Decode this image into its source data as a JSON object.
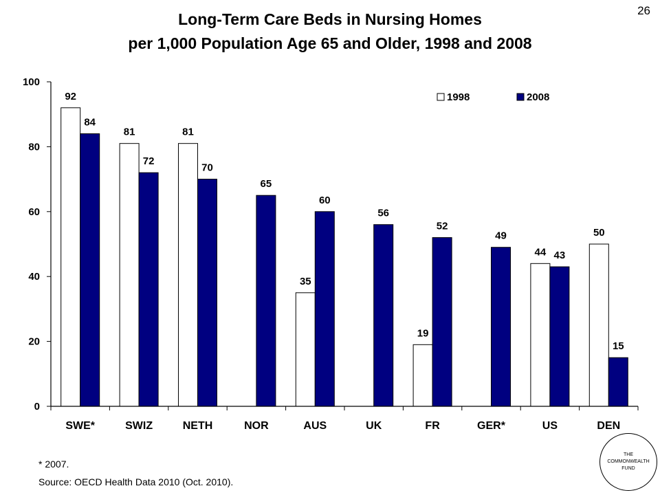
{
  "page_number": "26",
  "title_line1": "Long-Term Care Beds in Nursing Homes",
  "title_line2": "per 1,000 Population Age 65 and Older, 1998 and 2008",
  "footnote": "* 2007.",
  "source": "Source: OECD Health Data 2010 (Oct. 2010).",
  "logo": {
    "line1": "THE",
    "line2": "COMMONWEALTH",
    "line3": "FUND"
  },
  "colors": {
    "series_1998": "#ffffff",
    "series_2008": "#000080",
    "outline": "#000000"
  },
  "chart_data": {
    "type": "bar",
    "title": "Long-Term Care Beds in Nursing Homes per 1,000 Population Age 65 and Older, 1998 and 2008",
    "categories": [
      "SWE*",
      "SWIZ",
      "NETH",
      "NOR",
      "AUS",
      "UK",
      "FR",
      "GER*",
      "US",
      "DEN"
    ],
    "series": [
      {
        "name": "1998",
        "values": [
          92,
          81,
          81,
          null,
          35,
          null,
          19,
          null,
          44,
          50
        ]
      },
      {
        "name": "2008",
        "values": [
          84,
          72,
          70,
          65,
          60,
          56,
          52,
          49,
          43,
          15
        ]
      }
    ],
    "ylim": [
      0,
      100
    ],
    "yticks": [
      "0",
      "20",
      "40",
      "60",
      "80",
      "100"
    ],
    "xlabel": "",
    "ylabel": "",
    "legend_position": "top-right",
    "grid": false
  }
}
